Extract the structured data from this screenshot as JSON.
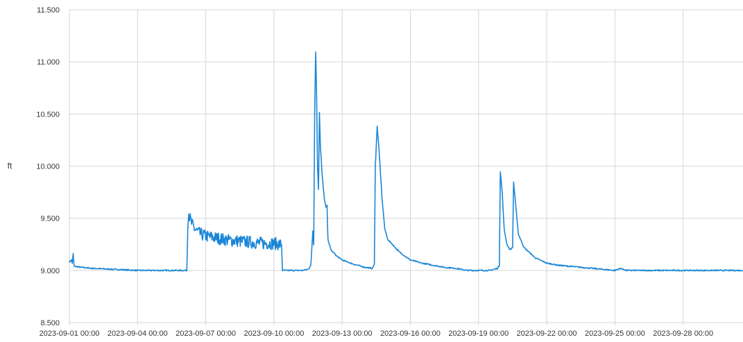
{
  "chart_data": {
    "type": "line",
    "title": "",
    "xlabel": "",
    "ylabel": "ft",
    "ylim": [
      8.5,
      11.5
    ],
    "xlim": [
      "2023-09-01 00:00",
      "2023-09-30 23:00"
    ],
    "yticks": [
      "8.500",
      "9.000",
      "9.500",
      "10.000",
      "10.500",
      "11.000",
      "11.500"
    ],
    "xticks": [
      "2023-09-01 00:00",
      "2023-09-04 00:00",
      "2023-09-07 00:00",
      "2023-09-10 00:00",
      "2023-09-13 00:00",
      "2023-09-16 00:00",
      "2023-09-19 00:00",
      "2023-09-22 00:00",
      "2023-09-25 00:00",
      "2023-09-28 00:00"
    ],
    "grid": true,
    "legend": "none",
    "series_color": "#1a86d6",
    "series": [
      {
        "values": [
          [
            "2023-09-01 00:00",
            9.08
          ],
          [
            "2023-09-01 02:00",
            9.1
          ],
          [
            "2023-09-01 03:00",
            9.07
          ],
          [
            "2023-09-01 04:00",
            9.16
          ],
          [
            "2023-09-01 05:00",
            9.04
          ],
          [
            "2023-09-01 12:00",
            9.03
          ],
          [
            "2023-09-02 00:00",
            9.02
          ],
          [
            "2023-09-03 00:00",
            9.01
          ],
          [
            "2023-09-04 00:00",
            9.0
          ],
          [
            "2023-09-05 00:00",
            9.0
          ],
          [
            "2023-09-05 12:00",
            9.0
          ],
          [
            "2023-09-06 00:00",
            9.0
          ],
          [
            "2023-09-06 04:00",
            9.0
          ],
          [
            "2023-09-06 05:00",
            9.4
          ],
          [
            "2023-09-06 06:00",
            9.54
          ],
          [
            "2023-09-06 09:00",
            9.45
          ],
          [
            "2023-09-06 12:00",
            9.4
          ],
          [
            "2023-09-06 18:00",
            9.35
          ],
          [
            "2023-09-07 00:00",
            9.33
          ],
          [
            "2023-09-07 12:00",
            9.31
          ],
          [
            "2023-09-08 00:00",
            9.29
          ],
          [
            "2023-09-08 12:00",
            9.28
          ],
          [
            "2023-09-09 00:00",
            9.27
          ],
          [
            "2023-09-09 12:00",
            9.26
          ],
          [
            "2023-09-10 00:00",
            9.26
          ],
          [
            "2023-09-10 06:00",
            9.25
          ],
          [
            "2023-09-10 08:00",
            9.25
          ],
          [
            "2023-09-10 09:00",
            9.0
          ],
          [
            "2023-09-10 18:00",
            9.0
          ],
          [
            "2023-09-11 06:00",
            9.0
          ],
          [
            "2023-09-11 12:00",
            9.01
          ],
          [
            "2023-09-11 15:00",
            9.05
          ],
          [
            "2023-09-11 17:00",
            9.38
          ],
          [
            "2023-09-11 18:00",
            9.25
          ],
          [
            "2023-09-11 19:00",
            10.5
          ],
          [
            "2023-09-11 20:00",
            11.1
          ],
          [
            "2023-09-11 21:00",
            10.7
          ],
          [
            "2023-09-11 22:00",
            10.0
          ],
          [
            "2023-09-11 23:00",
            9.78
          ],
          [
            "2023-09-12 00:00",
            10.52
          ],
          [
            "2023-09-12 01:00",
            10.2
          ],
          [
            "2023-09-12 03:00",
            9.9
          ],
          [
            "2023-09-12 05:00",
            9.7
          ],
          [
            "2023-09-12 07:00",
            9.6
          ],
          [
            "2023-09-12 08:00",
            9.62
          ],
          [
            "2023-09-12 09:00",
            9.3
          ],
          [
            "2023-09-12 12:00",
            9.2
          ],
          [
            "2023-09-12 18:00",
            9.14
          ],
          [
            "2023-09-13 00:00",
            9.1
          ],
          [
            "2023-09-13 12:00",
            9.06
          ],
          [
            "2023-09-14 00:00",
            9.03
          ],
          [
            "2023-09-14 08:00",
            9.02
          ],
          [
            "2023-09-14 10:00",
            9.06
          ],
          [
            "2023-09-14 11:00",
            10.0
          ],
          [
            "2023-09-14 13:00",
            10.38
          ],
          [
            "2023-09-14 15:00",
            10.15
          ],
          [
            "2023-09-14 18:00",
            9.7
          ],
          [
            "2023-09-14 21:00",
            9.4
          ],
          [
            "2023-09-15 00:00",
            9.3
          ],
          [
            "2023-09-15 12:00",
            9.18
          ],
          [
            "2023-09-16 00:00",
            9.1
          ],
          [
            "2023-09-16 12:00",
            9.07
          ],
          [
            "2023-09-17 00:00",
            9.05
          ],
          [
            "2023-09-17 12:00",
            9.03
          ],
          [
            "2023-09-18 00:00",
            9.02
          ],
          [
            "2023-09-18 12:00",
            9.0
          ],
          [
            "2023-09-19 00:00",
            9.0
          ],
          [
            "2023-09-19 12:00",
            9.0
          ],
          [
            "2023-09-19 20:00",
            9.02
          ],
          [
            "2023-09-19 22:00",
            9.05
          ],
          [
            "2023-09-19 23:00",
            9.95
          ],
          [
            "2023-09-20 01:00",
            9.75
          ],
          [
            "2023-09-20 03:00",
            9.4
          ],
          [
            "2023-09-20 06:00",
            9.25
          ],
          [
            "2023-09-20 09:00",
            9.2
          ],
          [
            "2023-09-20 12:00",
            9.22
          ],
          [
            "2023-09-20 13:00",
            9.85
          ],
          [
            "2023-09-20 15:00",
            9.65
          ],
          [
            "2023-09-20 18:00",
            9.35
          ],
          [
            "2023-09-21 00:00",
            9.22
          ],
          [
            "2023-09-21 12:00",
            9.12
          ],
          [
            "2023-09-22 00:00",
            9.07
          ],
          [
            "2023-09-22 12:00",
            9.05
          ],
          [
            "2023-09-23 00:00",
            9.04
          ],
          [
            "2023-09-23 12:00",
            9.03
          ],
          [
            "2023-09-24 00:00",
            9.02
          ],
          [
            "2023-09-24 12:00",
            9.01
          ],
          [
            "2023-09-25 00:00",
            9.0
          ],
          [
            "2023-09-25 06:00",
            9.02
          ],
          [
            "2023-09-25 12:00",
            9.0
          ],
          [
            "2023-09-26 00:00",
            9.0
          ],
          [
            "2023-09-27 00:00",
            9.0
          ],
          [
            "2023-09-28 00:00",
            9.0
          ],
          [
            "2023-09-29 00:00",
            9.0
          ],
          [
            "2023-09-30 00:00",
            9.0
          ],
          [
            "2023-09-30 23:00",
            9.0
          ]
        ]
      }
    ]
  }
}
